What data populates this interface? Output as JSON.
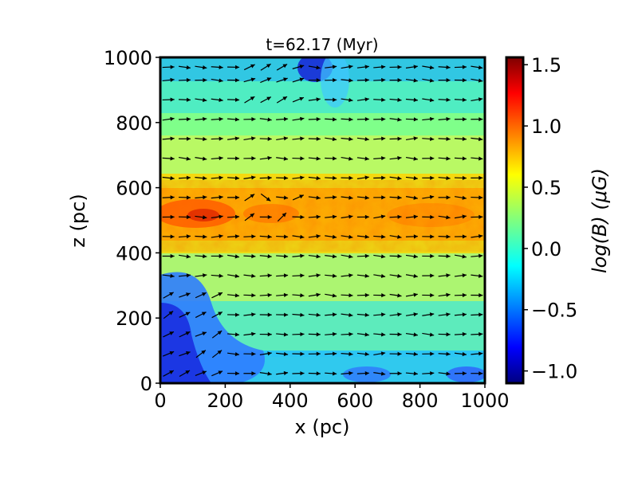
{
  "chart_data": {
    "type": "heatmap",
    "title": "t=62.17 (Myr)",
    "xlabel": "x (pc)",
    "ylabel": "z (pc)",
    "xlim": [
      0,
      1000
    ],
    "ylim": [
      0,
      1000
    ],
    "x_ticks": [
      "0",
      "200",
      "400",
      "600",
      "800",
      "1000"
    ],
    "y_ticks": [
      "0",
      "200",
      "400",
      "600",
      "800",
      "1000"
    ],
    "x_tick_values": [
      0,
      200,
      400,
      600,
      800,
      1000
    ],
    "y_tick_values": [
      0,
      200,
      400,
      600,
      800,
      1000
    ],
    "colorbar": {
      "label": "log(B) (μG)",
      "range": [
        -1.1,
        1.56
      ],
      "colormap": "jet",
      "ticks": [
        "1.5",
        "1.0",
        "0.5",
        "0.0",
        "−0.5",
        "−1.0"
      ],
      "tick_values": [
        1.5,
        1.0,
        0.5,
        0.0,
        -0.5,
        -1.0
      ]
    },
    "field_description": "Horizontal band of strong field near z≈500 pc; weak field regions at lower-left corner and near top around x≈450 pc",
    "vector_field": "quiver arrows showing magnetic field direction, predominantly pointing in +x direction",
    "vector_grid": {
      "x": [
        25,
        75,
        125,
        175,
        225,
        275,
        325,
        375,
        425,
        475,
        525,
        575,
        625,
        675,
        725,
        775,
        825,
        875,
        925,
        975
      ],
      "z": [
        30,
        90,
        150,
        210,
        270,
        330,
        390,
        450,
        510,
        570,
        630,
        690,
        750,
        810,
        870,
        930,
        970
      ]
    },
    "colors": {
      "jet_stops": [
        "#00007f",
        "#0000ff",
        "#007fff",
        "#00ffff",
        "#7fff7f",
        "#ffff00",
        "#ff7f00",
        "#ff0000",
        "#7f0000"
      ]
    }
  }
}
